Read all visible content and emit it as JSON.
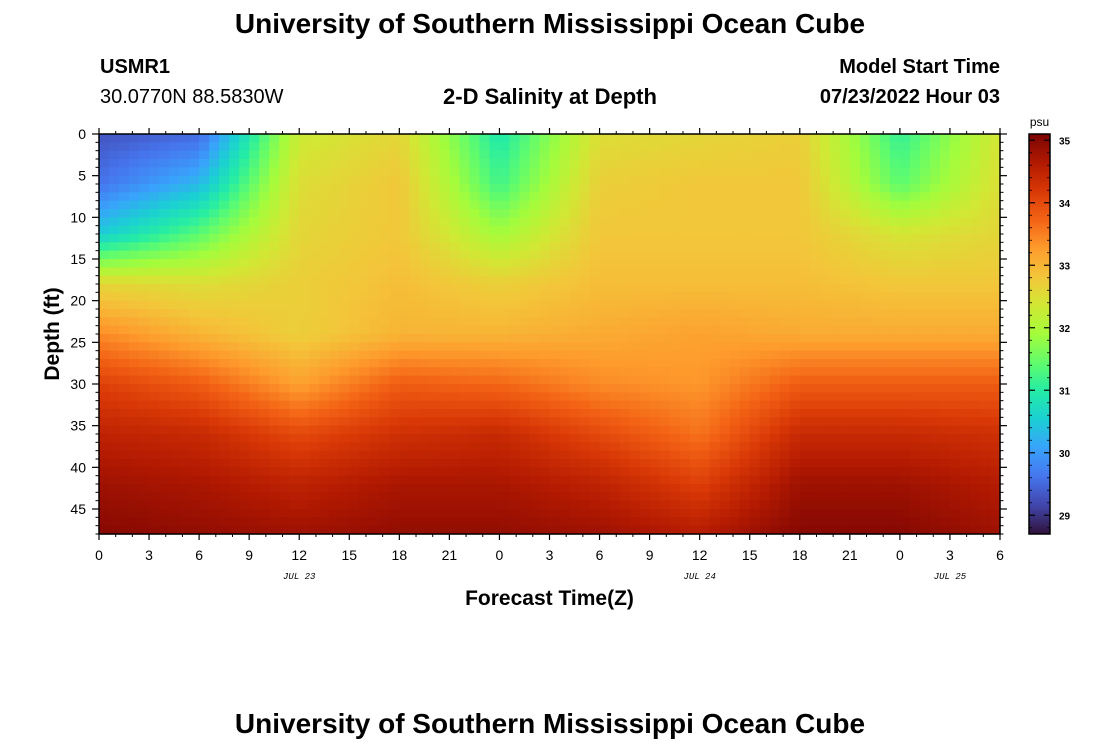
{
  "header": {
    "title": "University of Southern Mississippi Ocean Cube",
    "station": "USMR1",
    "coords": "30.0770N  88.5830W",
    "chart_title": "2-D Salinity at Depth",
    "model_start_label": "Model Start Time",
    "model_start_value": "07/23/2022 Hour 03"
  },
  "footer": {
    "title": "University of Southern Mississippi Ocean Cube"
  },
  "colorbar": {
    "unit": "psu",
    "ticks": [
      29,
      30,
      31,
      32,
      33,
      34,
      35
    ],
    "range": [
      28.7,
      35.1
    ],
    "colors": [
      "#30123b",
      "#4145ab",
      "#4675ed",
      "#39a2fc",
      "#1bcfd4",
      "#24eca6",
      "#61fc6c",
      "#a4fc3b",
      "#d1e834",
      "#f3c63a",
      "#fe9b2d",
      "#f36315",
      "#d93806",
      "#b11901",
      "#7a0403"
    ]
  },
  "chart_data": {
    "type": "heatmap",
    "title": "2-D Salinity at Depth",
    "xlabel": "Forecast Time(Z)",
    "ylabel": "Depth (ft)",
    "x_tick_labels": [
      "0",
      "3",
      "6",
      "9",
      "12",
      "15",
      "18",
      "21",
      "0",
      "3",
      "6",
      "9",
      "12",
      "15",
      "18",
      "21",
      "0",
      "3",
      "6"
    ],
    "x_hours": [
      0,
      3,
      6,
      9,
      12,
      15,
      18,
      21,
      24,
      27,
      30,
      33,
      36,
      39,
      42,
      45,
      48,
      51,
      54
    ],
    "date_labels": [
      {
        "text": "JUL 23",
        "hour": 12
      },
      {
        "text": "JUL 24",
        "hour": 36
      },
      {
        "text": "JUL 25",
        "hour": 51
      }
    ],
    "xlim": [
      0,
      54
    ],
    "y_ticks": [
      0,
      5,
      10,
      15,
      20,
      25,
      30,
      35,
      40,
      45
    ],
    "ylim": [
      0,
      48
    ],
    "y_inverted": true,
    "z_unit": "psu",
    "z_range": [
      28.7,
      35.1
    ],
    "grid_x_hours": [
      0,
      6,
      12,
      18,
      24,
      30,
      36,
      42,
      48,
      54
    ],
    "grid_depths_ft": [
      0,
      6,
      12,
      18,
      24,
      30,
      36,
      42,
      48
    ],
    "salinity": [
      [
        29.3,
        29.5,
        32.3,
        32.6,
        30.9,
        32.5,
        32.6,
        32.7,
        31.1,
        32.4
      ],
      [
        29.6,
        30.3,
        32.5,
        32.8,
        31.2,
        32.7,
        32.8,
        32.8,
        31.4,
        32.5
      ],
      [
        30.5,
        31.4,
        32.6,
        32.8,
        31.9,
        32.8,
        32.8,
        32.8,
        32.4,
        32.6
      ],
      [
        32.6,
        32.5,
        32.7,
        32.9,
        32.7,
        32.9,
        32.9,
        32.9,
        32.8,
        32.8
      ],
      [
        33.4,
        33.0,
        32.7,
        33.0,
        33.0,
        33.1,
        33.2,
        33.1,
        33.1,
        33.1
      ],
      [
        34.1,
        33.8,
        33.2,
        33.8,
        33.7,
        33.4,
        33.3,
        33.8,
        33.8,
        33.8
      ],
      [
        34.5,
        34.4,
        34.0,
        34.3,
        34.4,
        34.0,
        33.6,
        34.4,
        34.4,
        34.3
      ],
      [
        34.8,
        34.7,
        34.5,
        34.7,
        34.7,
        34.5,
        34.1,
        34.8,
        34.8,
        34.6
      ],
      [
        35.0,
        34.9,
        34.8,
        34.9,
        34.9,
        34.8,
        34.6,
        35.0,
        35.0,
        34.8
      ]
    ]
  }
}
